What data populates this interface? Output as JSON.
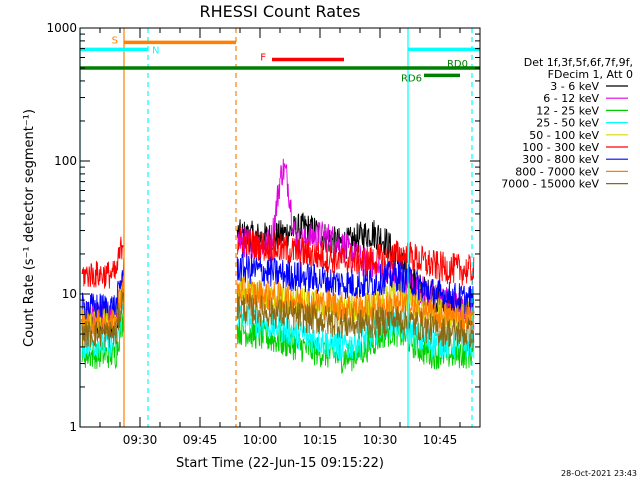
{
  "chart_data": {
    "type": "line",
    "title": "RHESSI Count Rates",
    "xlabel": "Start Time (22-Jun-15 09:15:22)",
    "ylabel": "Count Rate (s⁻¹ detector segment⁻¹)",
    "y_scale": "log",
    "ylim": [
      1,
      1000
    ],
    "xlim_minutes_after_0915": [
      0,
      100
    ],
    "x_tick_labels": [
      "09:30",
      "09:45",
      "10:00",
      "10:15",
      "10:30",
      "10:45"
    ],
    "x_ticks_minutes_after_0915": [
      15,
      30,
      45,
      60,
      75,
      90
    ],
    "y_tick_labels": [
      "1",
      "10",
      "100",
      "1000"
    ],
    "y_ticks": [
      1,
      10,
      100,
      1000
    ],
    "data_gap_minutes": [
      11,
      39
    ],
    "legend_header": [
      "Det 1f,3f,5f,6f,7f,9f,",
      "FDecim 1, Att 0"
    ],
    "series": [
      {
        "name": "3 - 6 keV",
        "color": "#000000",
        "pre": 6.0,
        "start": 28,
        "dip": 22,
        "end": 6.5,
        "peak": [
          56,
          32
        ],
        "peak2": [
          73,
          30
        ]
      },
      {
        "name": "6 - 12 keV",
        "color": "#e000e0",
        "pre": 6.8,
        "start": 25,
        "dip": 20,
        "end": 7.0,
        "peak": [
          51,
          100
        ],
        "peak2": [
          60,
          28
        ]
      },
      {
        "name": "12 - 25 keV",
        "color": "#00d000",
        "pre": 3.5,
        "start": 5.5,
        "dip": 3.3,
        "end": 3.6,
        "peak": [
          78,
          5.5
        ]
      },
      {
        "name": "25 - 50 keV",
        "color": "#00ffff",
        "pre": 4.2,
        "start": 7.0,
        "dip": 4.0,
        "end": 4.3,
        "peak": [
          78,
          6.3
        ]
      },
      {
        "name": "50 - 100 keV",
        "color": "#d8d800",
        "pre": 6.5,
        "start": 10.5,
        "dip": 7.5,
        "end": 7.0,
        "peak": [
          79,
          10
        ]
      },
      {
        "name": "100 - 300 keV",
        "color": "#ff0000",
        "pre": 14,
        "start": 25,
        "dip": 18,
        "end": 15,
        "peak": [
          80,
          20
        ]
      },
      {
        "name": "300 - 800 keV",
        "color": "#0000ff",
        "pre": 8.0,
        "start": 16,
        "dip": 12,
        "end": 9.0,
        "peak": [
          79,
          14
        ]
      },
      {
        "name": "800 - 7000 keV",
        "color": "#ff8000",
        "pre": 6.0,
        "start": 10.5,
        "dip": 8.0,
        "end": 6.5,
        "peak": [
          79,
          8.2
        ]
      },
      {
        "name": "7000 - 15000 keV",
        "color": "#8b6914",
        "pre": 5.0,
        "start": 8.0,
        "dip": 6.0,
        "end": 5.0,
        "peak": [
          79,
          6.5
        ]
      }
    ],
    "attenuator_events": [
      {
        "label": "S",
        "color": "#ff8000",
        "from": 11,
        "to": 39,
        "y": 780
      },
      {
        "label": "N",
        "color": "#00ffff",
        "from": 0,
        "to": 17,
        "y": 690
      },
      {
        "label": "F",
        "color": "#ff0000",
        "from": 48,
        "to": 66,
        "y": 580
      },
      {
        "label": "RD0",
        "color": "#008000",
        "from": 0,
        "to": 100,
        "y": 500
      },
      {
        "label": "RD6",
        "color": "#008000",
        "from": 86,
        "to": 95,
        "y": 440
      },
      {
        "label": "",
        "color": "#00ffff",
        "from": 82,
        "to": 100,
        "y": 690
      }
    ],
    "vertical_markers": [
      {
        "x": 0,
        "color": "#00ffff",
        "style": "solid"
      },
      {
        "x": 11,
        "color": "#ff8000",
        "style": "solid"
      },
      {
        "x": 17,
        "color": "#00ffff",
        "style": "dashed"
      },
      {
        "x": 39,
        "color": "#ff8000",
        "style": "dashed"
      },
      {
        "x": 82,
        "color": "#00ffff",
        "style": "solid"
      },
      {
        "x": 98,
        "color": "#00ffff",
        "style": "dashed"
      }
    ],
    "footer_timestamp": "28-Oct-2021 23:43"
  }
}
